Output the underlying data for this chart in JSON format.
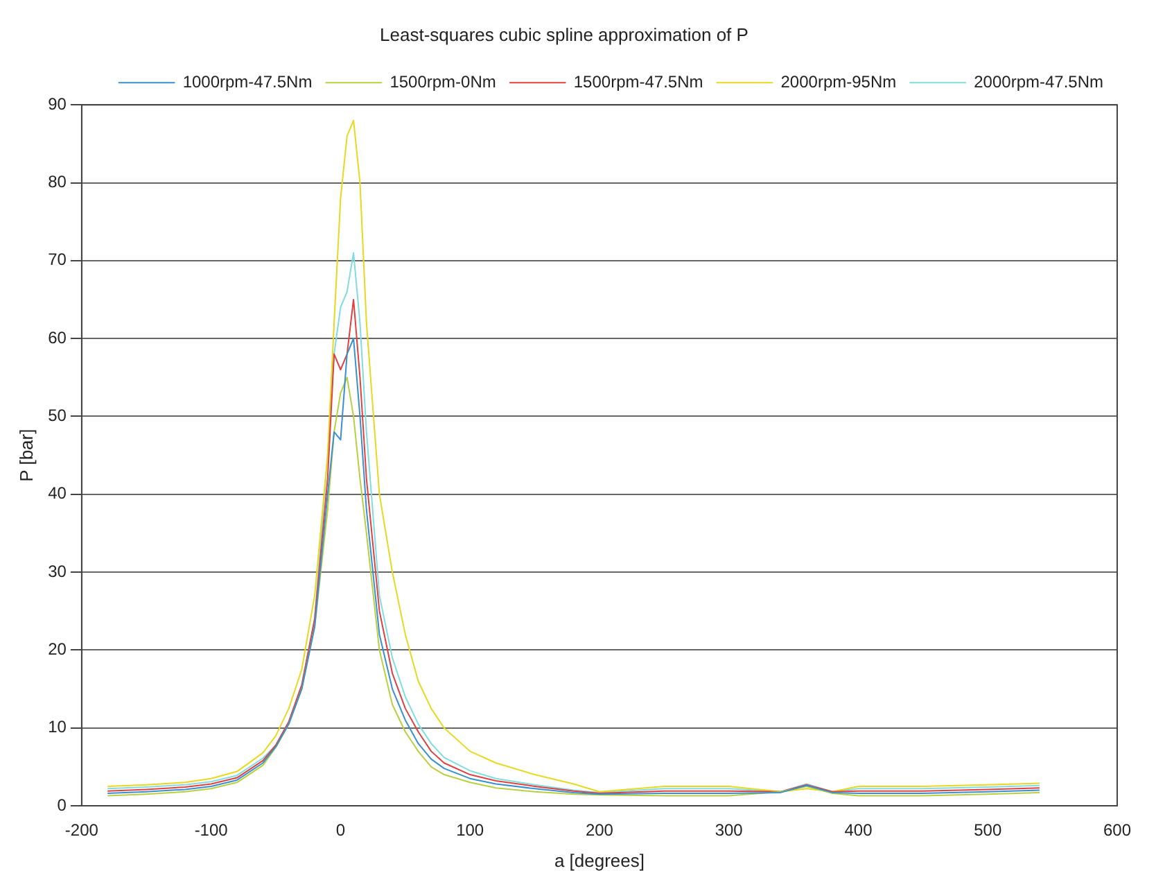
{
  "chart_data": {
    "type": "line",
    "title": "Least-squares cubic spline approximation of P",
    "xlabel": "a [degrees]",
    "ylabel": "P [bar]",
    "x": [
      -180,
      -150,
      -120,
      -100,
      -80,
      -60,
      -50,
      -40,
      -30,
      -20,
      -10,
      -5,
      0,
      5,
      10,
      15,
      20,
      30,
      40,
      50,
      60,
      70,
      80,
      100,
      120,
      150,
      180,
      200,
      250,
      300,
      340,
      360,
      380,
      400,
      450,
      500,
      540
    ],
    "series": [
      {
        "name": "1000rpm-47.5Nm",
        "color": "#3a8fd0",
        "values": [
          1.6,
          1.8,
          2.1,
          2.5,
          3.3,
          5.5,
          7.6,
          10.5,
          15,
          23,
          40,
          48,
          47,
          58,
          60,
          50,
          38,
          22,
          15,
          11,
          8,
          6,
          4.8,
          3.5,
          2.8,
          2.2,
          1.7,
          1.5,
          1.6,
          1.6,
          1.7,
          2.6,
          1.7,
          1.6,
          1.6,
          1.8,
          2
        ]
      },
      {
        "name": "1500rpm-0Nm",
        "color": "#b8d040",
        "values": [
          1.3,
          1.5,
          1.8,
          2.2,
          3,
          5.2,
          7.5,
          10.5,
          15,
          23,
          38,
          48,
          53,
          55,
          50,
          42,
          35,
          20,
          13,
          9.5,
          7,
          5,
          4,
          3,
          2.3,
          1.8,
          1.5,
          1.4,
          1.3,
          1.3,
          1.8,
          2.5,
          1.6,
          1.3,
          1.3,
          1.5,
          1.7
        ]
      },
      {
        "name": "1500rpm-47.5Nm",
        "color": "#e04040",
        "values": [
          1.9,
          2.1,
          2.4,
          2.8,
          3.6,
          5.8,
          7.8,
          10.8,
          15.5,
          24,
          42,
          58,
          56,
          58,
          65,
          55,
          42,
          25,
          17,
          12.5,
          9.5,
          7,
          5.5,
          4,
          3.2,
          2.5,
          1.9,
          1.6,
          1.9,
          1.9,
          1.8,
          2.7,
          1.8,
          1.9,
          1.9,
          2.1,
          2.3
        ]
      },
      {
        "name": "2000rpm-95Nm",
        "color": "#e8d820",
        "values": [
          2.5,
          2.7,
          3,
          3.5,
          4.4,
          6.8,
          9,
          12.5,
          17.5,
          27,
          45,
          62,
          78,
          86,
          88,
          80,
          62,
          40,
          30,
          22,
          16,
          12.5,
          10,
          7,
          5.5,
          4,
          2.8,
          1.8,
          2.5,
          2.5,
          1.8,
          2.2,
          1.8,
          2.5,
          2.5,
          2.7,
          2.9
        ]
      },
      {
        "name": "2000rpm-47.5Nm",
        "color": "#80dce0",
        "values": [
          2.2,
          2.4,
          2.7,
          3.1,
          3.9,
          6.1,
          7.8,
          10.8,
          15.5,
          24,
          45,
          58,
          64,
          66,
          71,
          62,
          48,
          27,
          19,
          14,
          10.5,
          8,
          6.2,
          4.5,
          3.5,
          2.7,
          2,
          1.7,
          2.2,
          2.2,
          1.8,
          2.8,
          1.8,
          2.2,
          2.2,
          2.4,
          2.6
        ]
      }
    ],
    "xlim": [
      -200,
      600
    ],
    "xticks": [
      -200,
      -100,
      0,
      100,
      200,
      300,
      400,
      500,
      600
    ],
    "ylim": [
      0,
      90
    ],
    "yticks": [
      0,
      10,
      20,
      30,
      40,
      50,
      60,
      70,
      80,
      90
    ],
    "grid": "y",
    "legend": "top right",
    "line_style": "solid",
    "marker": "none"
  }
}
